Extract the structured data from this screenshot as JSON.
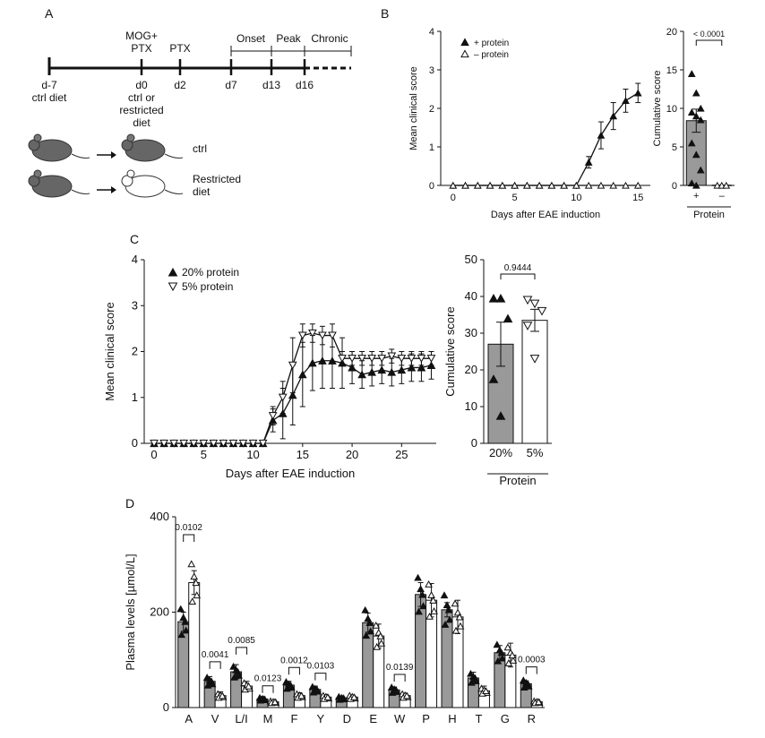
{
  "panel_labels": {
    "a": "A",
    "b": "B",
    "c": "C",
    "d": "D"
  },
  "timeline": {
    "groups": [
      "MOG+",
      "PTX"
    ],
    "ptx2": "PTX",
    "phases": [
      "Onset",
      "Peak",
      "Chronic"
    ],
    "days": [
      "d-7",
      "d0",
      "d2",
      "d7",
      "d13",
      "d16"
    ],
    "sub_notes": [
      "ctrl diet",
      "ctrl or",
      "restricted",
      "diet"
    ],
    "mouse_labels": [
      "ctrl",
      "Restricted",
      "diet"
    ],
    "colors": {
      "ctrl_mouse": "#666666",
      "restricted_mouse": "#ffffff"
    }
  },
  "chart_data": [
    {
      "id": "B-left",
      "type": "line",
      "xlabel": "Days after EAE induction",
      "ylabel": "Mean clinical score",
      "xlim": [
        -1,
        16
      ],
      "ylim": [
        0,
        4
      ],
      "xticks": [
        0,
        5,
        10,
        15
      ],
      "yticks": [
        0,
        1,
        2,
        3,
        4
      ],
      "series": [
        {
          "name": "+ protein",
          "marker": "filled-up",
          "x": [
            0,
            1,
            2,
            3,
            4,
            5,
            6,
            7,
            8,
            9,
            10,
            11,
            12,
            13,
            14,
            15
          ],
          "y": [
            0,
            0,
            0,
            0,
            0,
            0,
            0,
            0,
            0,
            0,
            0,
            0.6,
            1.3,
            1.8,
            2.2,
            2.4
          ],
          "err": [
            0,
            0,
            0,
            0,
            0,
            0,
            0,
            0,
            0,
            0,
            0,
            0.15,
            0.35,
            0.35,
            0.3,
            0.25
          ]
        },
        {
          "name": "– protein",
          "marker": "open-up",
          "x": [
            0,
            1,
            2,
            3,
            4,
            5,
            6,
            7,
            8,
            9,
            10,
            11,
            12,
            13,
            14,
            15
          ],
          "y": [
            0,
            0,
            0,
            0,
            0,
            0,
            0,
            0,
            0,
            0,
            0,
            0,
            0,
            0,
            0,
            0
          ]
        }
      ]
    },
    {
      "id": "B-right",
      "type": "bar",
      "ylabel": "Cumulative score",
      "xlabel": "Protein",
      "categories": [
        "+",
        "–"
      ],
      "ylim": [
        0,
        20
      ],
      "yticks": [
        0,
        5,
        10,
        15,
        20
      ],
      "values": [
        8.4,
        0
      ],
      "err": [
        1.5,
        0
      ],
      "points": [
        [
          14.5,
          12,
          10,
          9.5,
          9,
          8.5,
          5.5,
          4,
          2,
          0.3,
          0
        ],
        [
          0,
          0,
          0
        ]
      ],
      "p_value": "< 0.0001",
      "colors": [
        "#999999",
        "#ffffff"
      ]
    },
    {
      "id": "C-left",
      "type": "line",
      "xlabel": "Days after EAE induction",
      "ylabel": "Mean clinical score",
      "xlim": [
        -1,
        28.5
      ],
      "ylim": [
        0,
        4
      ],
      "xticks": [
        0,
        5,
        10,
        15,
        20,
        25
      ],
      "yticks": [
        0,
        1,
        2,
        3,
        4
      ],
      "series": [
        {
          "name": "20% protein",
          "marker": "filled-up",
          "x": [
            0,
            1,
            2,
            3,
            4,
            5,
            6,
            7,
            8,
            9,
            10,
            11,
            12,
            13,
            14,
            15,
            16,
            17,
            18,
            19,
            20,
            21,
            22,
            23,
            24,
            25,
            26,
            27,
            28
          ],
          "y": [
            0,
            0,
            0,
            0,
            0,
            0,
            0,
            0,
            0,
            0,
            0,
            0,
            0.5,
            0.65,
            1.05,
            1.5,
            1.75,
            1.8,
            1.8,
            1.75,
            1.65,
            1.5,
            1.55,
            1.6,
            1.55,
            1.6,
            1.65,
            1.65,
            1.7
          ],
          "err": [
            0,
            0,
            0,
            0,
            0,
            0,
            0,
            0,
            0,
            0,
            0,
            0,
            0.25,
            0.55,
            0.65,
            0.7,
            0.6,
            0.6,
            0.6,
            0.55,
            0.35,
            0.3,
            0.3,
            0.3,
            0.3,
            0.3,
            0.3,
            0.3,
            0.3
          ]
        },
        {
          "name": "5% protein",
          "marker": "open-down",
          "x": [
            0,
            1,
            2,
            3,
            4,
            5,
            6,
            7,
            8,
            9,
            10,
            11,
            12,
            13,
            14,
            15,
            16,
            17,
            18,
            19,
            20,
            21,
            22,
            23,
            24,
            25,
            26,
            27,
            28
          ],
          "y": [
            0,
            0,
            0,
            0,
            0,
            0,
            0,
            0,
            0,
            0,
            0,
            0,
            0.6,
            1.0,
            1.7,
            2.35,
            2.4,
            2.35,
            2.35,
            1.85,
            1.85,
            1.85,
            1.85,
            1.85,
            1.9,
            1.85,
            1.85,
            1.85,
            1.85
          ],
          "err": [
            0,
            0,
            0,
            0,
            0,
            0,
            0,
            0,
            0,
            0,
            0,
            0,
            0.2,
            0.35,
            0.6,
            0.25,
            0.2,
            0.2,
            0.25,
            0.15,
            0.15,
            0.15,
            0.15,
            0.15,
            0.15,
            0.15,
            0.15,
            0.15,
            0.15
          ]
        }
      ]
    },
    {
      "id": "C-right",
      "type": "bar",
      "ylabel": "Cumulative score",
      "xlabel": "Protein",
      "categories": [
        "20%",
        "5%"
      ],
      "ylim": [
        0,
        50
      ],
      "yticks": [
        0,
        10,
        20,
        30,
        40,
        50
      ],
      "values": [
        27,
        33.5
      ],
      "err": [
        6,
        3
      ],
      "points": [
        [
          39.5,
          39.5,
          34,
          17.5,
          7.5
        ],
        [
          39,
          38,
          36,
          32,
          23
        ]
      ],
      "markers": [
        "filled-up",
        "open-down"
      ],
      "p_value": "0.9444",
      "colors": [
        "#999999",
        "#ffffff"
      ]
    },
    {
      "id": "D",
      "type": "bar",
      "ylabel": "Plasma levels [µmol/L]",
      "ylim": [
        0,
        400
      ],
      "yticks": [
        0,
        200,
        400
      ],
      "categories": [
        "A",
        "V",
        "L/I",
        "M",
        "F",
        "Y",
        "D",
        "E",
        "W",
        "P",
        "H",
        "T",
        "G",
        "R"
      ],
      "series": [
        {
          "name": "",
          "color": "#999999",
          "values": [
            180,
            55,
            75,
            18,
            47,
            38,
            20,
            178,
            37,
            237,
            205,
            62,
            115,
            50
          ],
          "err": [
            20,
            10,
            15,
            5,
            8,
            7,
            4,
            20,
            6,
            25,
            15,
            12,
            15,
            6
          ]
        },
        {
          "name": "",
          "color": "#ffffff",
          "values": [
            262,
            25,
            45,
            12,
            25,
            22,
            22,
            150,
            25,
            225,
            190,
            35,
            110,
            12
          ],
          "err": [
            25,
            8,
            10,
            3,
            6,
            5,
            4,
            25,
            5,
            35,
            35,
            10,
            25,
            3
          ]
        }
      ],
      "p_values": [
        {
          "index": 0,
          "label": "0.0102"
        },
        {
          "index": 1,
          "label": "0.0041"
        },
        {
          "index": 2,
          "label": "0.0085"
        },
        {
          "index": 3,
          "label": "0.0123"
        },
        {
          "index": 4,
          "label": "0.0012"
        },
        {
          "index": 5,
          "label": "0.0103"
        },
        {
          "index": 8,
          "label": "0.0139"
        },
        {
          "index": 13,
          "label": "0.0003"
        }
      ]
    }
  ]
}
